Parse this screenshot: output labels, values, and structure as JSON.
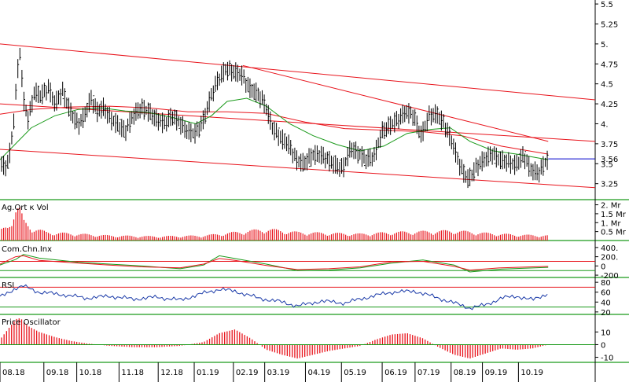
{
  "chart_data": [
    {
      "type": "candlestick",
      "panel": "price",
      "yticks": [
        "5.5",
        "5.25",
        "5.",
        "4.75",
        "4.5",
        "4.25",
        "4.",
        "3.75",
        "3.5",
        "3.25"
      ],
      "ytick_values": [
        5.5,
        5.25,
        5.0,
        4.75,
        4.5,
        4.25,
        4.0,
        3.75,
        3.5,
        3.25
      ],
      "ylim": [
        3.05,
        5.55
      ],
      "last_value_label": "3.56",
      "last_value": 3.56,
      "colors": {
        "bars": "#000000",
        "trend_lines": "#e8141c",
        "ma_long": "#e8141c",
        "ma_short": "#1a9a1a",
        "last_value_line": "#0000cc"
      },
      "trend_lines": [
        {
          "x": [
            0,
            760
          ],
          "y": [
            5.0,
            4.3
          ]
        },
        {
          "x": [
            0,
            760
          ],
          "y": [
            3.68,
            3.2
          ]
        },
        {
          "x": [
            0,
            760
          ],
          "y": [
            4.25,
            3.78
          ]
        },
        {
          "x": [
            310,
            700
          ],
          "y": [
            4.73,
            3.78
          ]
        }
      ],
      "ma_long_points": [
        [
          0,
          4.12
        ],
        [
          40,
          4.18
        ],
        [
          90,
          4.21
        ],
        [
          140,
          4.22
        ],
        [
          190,
          4.2
        ],
        [
          240,
          4.15
        ],
        [
          290,
          4.15
        ],
        [
          340,
          4.13
        ],
        [
          390,
          4.02
        ],
        [
          440,
          3.94
        ],
        [
          490,
          3.92
        ],
        [
          540,
          3.9
        ],
        [
          590,
          3.85
        ],
        [
          640,
          3.72
        ],
        [
          700,
          3.62
        ]
      ],
      "ma_short_points": [
        [
          0,
          3.55
        ],
        [
          20,
          3.75
        ],
        [
          40,
          3.95
        ],
        [
          70,
          4.1
        ],
        [
          100,
          4.18
        ],
        [
          130,
          4.2
        ],
        [
          160,
          4.16
        ],
        [
          190,
          4.14
        ],
        [
          220,
          4.08
        ],
        [
          250,
          4.0
        ],
        [
          270,
          4.1
        ],
        [
          290,
          4.28
        ],
        [
          315,
          4.32
        ],
        [
          340,
          4.22
        ],
        [
          370,
          4.0
        ],
        [
          400,
          3.85
        ],
        [
          430,
          3.74
        ],
        [
          460,
          3.66
        ],
        [
          490,
          3.72
        ],
        [
          520,
          3.88
        ],
        [
          550,
          3.93
        ],
        [
          575,
          3.95
        ],
        [
          600,
          3.78
        ],
        [
          630,
          3.66
        ],
        [
          660,
          3.62
        ],
        [
          700,
          3.55
        ]
      ],
      "price_points": [
        [
          0,
          3.5
        ],
        [
          8,
          3.45
        ],
        [
          14,
          3.7
        ],
        [
          18,
          4.1
        ],
        [
          22,
          4.6
        ],
        [
          25,
          4.95
        ],
        [
          30,
          4.3
        ],
        [
          36,
          4.05
        ],
        [
          44,
          4.4
        ],
        [
          52,
          4.35
        ],
        [
          62,
          4.45
        ],
        [
          70,
          4.25
        ],
        [
          80,
          4.4
        ],
        [
          90,
          4.15
        ],
        [
          100,
          3.98
        ],
        [
          108,
          4.1
        ],
        [
          116,
          4.32
        ],
        [
          124,
          4.15
        ],
        [
          132,
          4.2
        ],
        [
          142,
          4.05
        ],
        [
          152,
          3.98
        ],
        [
          160,
          3.9
        ],
        [
          170,
          4.1
        ],
        [
          180,
          4.2
        ],
        [
          190,
          4.15
        ],
        [
          200,
          4.05
        ],
        [
          210,
          4.0
        ],
        [
          220,
          4.1
        ],
        [
          230,
          4.0
        ],
        [
          240,
          3.9
        ],
        [
          250,
          3.88
        ],
        [
          260,
          4.05
        ],
        [
          268,
          4.3
        ],
        [
          278,
          4.55
        ],
        [
          288,
          4.68
        ],
        [
          298,
          4.65
        ],
        [
          308,
          4.62
        ],
        [
          318,
          4.45
        ],
        [
          328,
          4.38
        ],
        [
          338,
          4.25
        ],
        [
          348,
          3.95
        ],
        [
          358,
          3.82
        ],
        [
          368,
          3.75
        ],
        [
          378,
          3.55
        ],
        [
          388,
          3.5
        ],
        [
          398,
          3.6
        ],
        [
          408,
          3.62
        ],
        [
          418,
          3.55
        ],
        [
          428,
          3.48
        ],
        [
          438,
          3.44
        ],
        [
          448,
          3.7
        ],
        [
          458,
          3.62
        ],
        [
          468,
          3.55
        ],
        [
          478,
          3.6
        ],
        [
          488,
          3.9
        ],
        [
          498,
          3.98
        ],
        [
          508,
          4.05
        ],
        [
          518,
          4.15
        ],
        [
          528,
          4.1
        ],
        [
          538,
          3.85
        ],
        [
          548,
          4.1
        ],
        [
          558,
          4.12
        ],
        [
          568,
          3.98
        ],
        [
          578,
          3.75
        ],
        [
          588,
          3.45
        ],
        [
          598,
          3.3
        ],
        [
          608,
          3.45
        ],
        [
          618,
          3.55
        ],
        [
          628,
          3.62
        ],
        [
          638,
          3.55
        ],
        [
          648,
          3.52
        ],
        [
          658,
          3.48
        ],
        [
          668,
          3.6
        ],
        [
          678,
          3.42
        ],
        [
          688,
          3.38
        ],
        [
          696,
          3.52
        ],
        [
          700,
          3.56
        ]
      ]
    },
    {
      "type": "bar",
      "panel": "volume",
      "title": "Ag.Ort к Vol",
      "yticks": [
        "2. Mr",
        "1.5 Mr",
        "1. Mr",
        "0.5 Mr"
      ],
      "ytick_values": [
        2.0,
        1.5,
        1.0,
        0.5
      ],
      "ylim": [
        0,
        2.2
      ],
      "unit": "Mr",
      "colors": {
        "bars": "#e8141c"
      },
      "volume_points": [
        [
          0,
          0.6
        ],
        [
          10,
          0.9
        ],
        [
          20,
          1.9
        ],
        [
          25,
          2.0
        ],
        [
          30,
          1.2
        ],
        [
          40,
          0.8
        ],
        [
          60,
          0.5
        ],
        [
          100,
          0.4
        ],
        [
          140,
          0.3
        ],
        [
          200,
          0.25
        ],
        [
          260,
          0.3
        ],
        [
          300,
          0.5
        ],
        [
          340,
          0.7
        ],
        [
          380,
          0.5
        ],
        [
          420,
          0.45
        ],
        [
          460,
          0.4
        ],
        [
          500,
          0.5
        ],
        [
          540,
          0.55
        ],
        [
          580,
          0.6
        ],
        [
          620,
          0.45
        ],
        [
          660,
          0.35
        ],
        [
          700,
          0.3
        ]
      ]
    },
    {
      "type": "line",
      "panel": "oscillator",
      "title": "Com.Chn.Inx",
      "yticks": [
        "400.",
        "200.",
        "0",
        "-200"
      ],
      "ytick_values": [
        400,
        200,
        0,
        -200
      ],
      "ylim": [
        -250,
        500
      ],
      "reference_lines": [
        {
          "y": 100,
          "color": "#e8141c"
        },
        {
          "y": -100,
          "color": "#1a9a1a"
        }
      ],
      "colors": {
        "series_a": "#e8141c",
        "series_b": "#1a9a1a"
      },
      "series_a_points": [
        [
          0,
          40
        ],
        [
          20,
          200
        ],
        [
          30,
          220
        ],
        [
          50,
          120
        ],
        [
          100,
          60
        ],
        [
          140,
          20
        ],
        [
          180,
          -20
        ],
        [
          230,
          -40
        ],
        [
          260,
          40
        ],
        [
          280,
          160
        ],
        [
          300,
          120
        ],
        [
          340,
          10
        ],
        [
          380,
          -80
        ],
        [
          420,
          -60
        ],
        [
          460,
          -20
        ],
        [
          500,
          90
        ],
        [
          540,
          100
        ],
        [
          580,
          -10
        ],
        [
          600,
          -90
        ],
        [
          640,
          -40
        ],
        [
          700,
          -10
        ]
      ],
      "series_b_points": [
        [
          0,
          20
        ],
        [
          20,
          140
        ],
        [
          30,
          250
        ],
        [
          50,
          170
        ],
        [
          100,
          80
        ],
        [
          140,
          40
        ],
        [
          180,
          0
        ],
        [
          230,
          -60
        ],
        [
          260,
          20
        ],
        [
          280,
          220
        ],
        [
          300,
          160
        ],
        [
          340,
          40
        ],
        [
          380,
          -100
        ],
        [
          420,
          -90
        ],
        [
          460,
          -40
        ],
        [
          500,
          60
        ],
        [
          540,
          130
        ],
        [
          580,
          20
        ],
        [
          600,
          -130
        ],
        [
          640,
          -70
        ],
        [
          700,
          -30
        ]
      ]
    },
    {
      "type": "line",
      "panel": "rsi",
      "title": "RSI",
      "yticks": [
        "80",
        "60",
        "40",
        "20"
      ],
      "ytick_values": [
        80,
        60,
        40,
        20
      ],
      "ylim": [
        15,
        85
      ],
      "reference_lines": [
        {
          "y": 70,
          "color": "#e8141c"
        },
        {
          "y": 30,
          "color": "#1a9a1a"
        }
      ],
      "colors": {
        "series": "#1a3aa8"
      },
      "rsi_points": [
        [
          0,
          50
        ],
        [
          20,
          68
        ],
        [
          30,
          72
        ],
        [
          50,
          60
        ],
        [
          80,
          55
        ],
        [
          110,
          48
        ],
        [
          140,
          52
        ],
        [
          170,
          46
        ],
        [
          200,
          50
        ],
        [
          230,
          44
        ],
        [
          260,
          58
        ],
        [
          280,
          66
        ],
        [
          300,
          62
        ],
        [
          330,
          48
        ],
        [
          360,
          40
        ],
        [
          380,
          32
        ],
        [
          410,
          42
        ],
        [
          440,
          38
        ],
        [
          470,
          50
        ],
        [
          500,
          60
        ],
        [
          530,
          62
        ],
        [
          560,
          48
        ],
        [
          580,
          38
        ],
        [
          600,
          28
        ],
        [
          620,
          34
        ],
        [
          640,
          48
        ],
        [
          660,
          52
        ],
        [
          680,
          44
        ],
        [
          700,
          58
        ]
      ]
    },
    {
      "type": "bar",
      "panel": "price_oscillator",
      "title": "Price Oscillator",
      "yticks": [
        "10",
        "0",
        "-10"
      ],
      "ytick_values": [
        10,
        0,
        -10
      ],
      "ylim": [
        -14,
        22
      ],
      "colors": {
        "bars": "#e8141c",
        "zero_line": "#1a9a1a"
      },
      "osc_points": [
        [
          0,
          4
        ],
        [
          10,
          12
        ],
        [
          20,
          20
        ],
        [
          26,
          21
        ],
        [
          35,
          15
        ],
        [
          50,
          10
        ],
        [
          70,
          6
        ],
        [
          90,
          3
        ],
        [
          110,
          1
        ],
        [
          140,
          -1
        ],
        [
          170,
          -2
        ],
        [
          200,
          -2
        ],
        [
          230,
          -1
        ],
        [
          260,
          2
        ],
        [
          280,
          9
        ],
        [
          300,
          12
        ],
        [
          320,
          5
        ],
        [
          340,
          -4
        ],
        [
          360,
          -8
        ],
        [
          380,
          -11
        ],
        [
          400,
          -8
        ],
        [
          420,
          -5
        ],
        [
          440,
          -3
        ],
        [
          460,
          -1
        ],
        [
          480,
          4
        ],
        [
          500,
          8
        ],
        [
          520,
          9
        ],
        [
          540,
          5
        ],
        [
          560,
          -2
        ],
        [
          580,
          -8
        ],
        [
          600,
          -11
        ],
        [
          620,
          -7
        ],
        [
          640,
          -3
        ],
        [
          660,
          -4
        ],
        [
          680,
          -3
        ],
        [
          700,
          0
        ]
      ]
    }
  ],
  "x_axis": {
    "labels": [
      "08.18",
      "09.18",
      "10.18",
      "11.18",
      "12.18",
      "01.19",
      "02.19",
      "03.19",
      "04.19",
      "05.19",
      "06.19",
      "07.19",
      "08.19",
      "09.19",
      "10.19"
    ],
    "positions": [
      0,
      56,
      98,
      152,
      202,
      248,
      298,
      338,
      390,
      436,
      488,
      530,
      576,
      616,
      662
    ],
    "xlim": [
      0,
      760
    ]
  }
}
